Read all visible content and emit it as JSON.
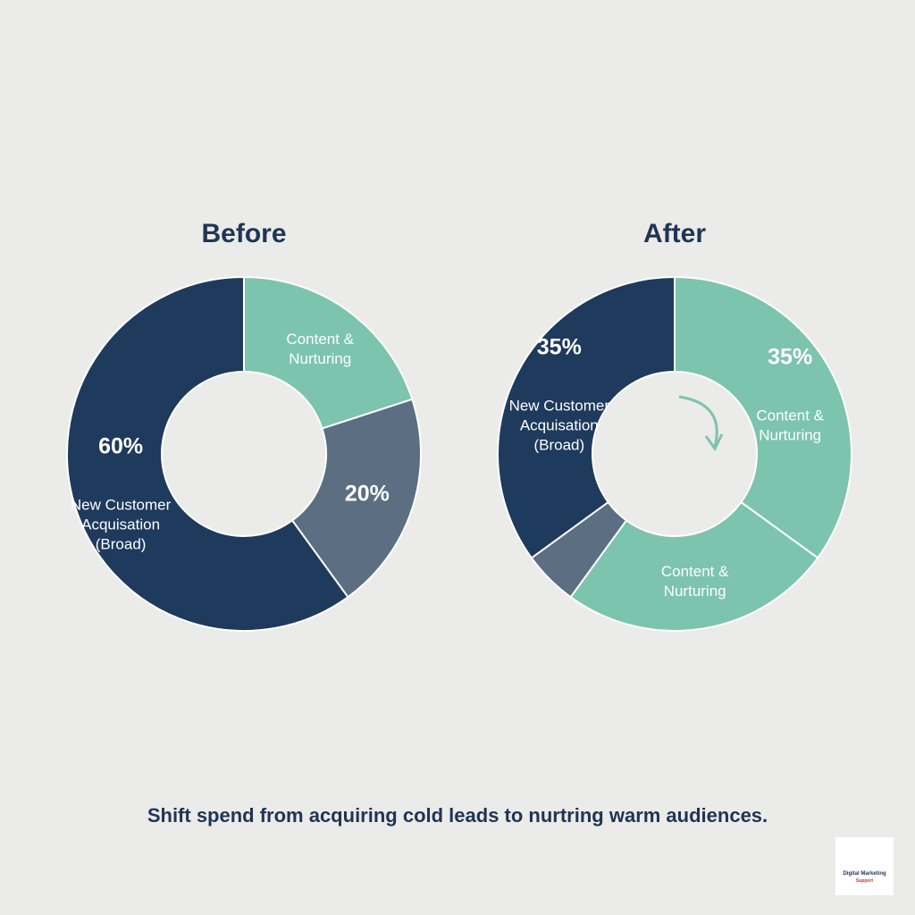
{
  "chart_data": [
    {
      "type": "pie",
      "title": "Before",
      "categories": [
        "Content & Nurturing",
        null,
        "New Customer Acquisation (Broad)"
      ],
      "values": [
        20,
        20,
        60
      ],
      "value_labels": [
        null,
        "20%",
        "60%"
      ],
      "colors": [
        "#7cc4ae",
        "#5b6e82",
        "#1e3a5c"
      ]
    },
    {
      "type": "pie",
      "title": "After",
      "categories": [
        "Content & Nurturing",
        "Content & Nurturing",
        null,
        "New Customer Acquisation (Broad)"
      ],
      "values": [
        35,
        25,
        5,
        35
      ],
      "value_labels": [
        "35%",
        null,
        null,
        "35%"
      ],
      "colors": [
        "#7cc4ae",
        "#7cc4ae",
        "#5b6e82",
        "#1e3a5c"
      ]
    }
  ],
  "caption": "Shift spend from acquiring cold leads to nurtring warm audiences.",
  "logo": {
    "line1": "Digital Marketing",
    "line2": "Support"
  }
}
